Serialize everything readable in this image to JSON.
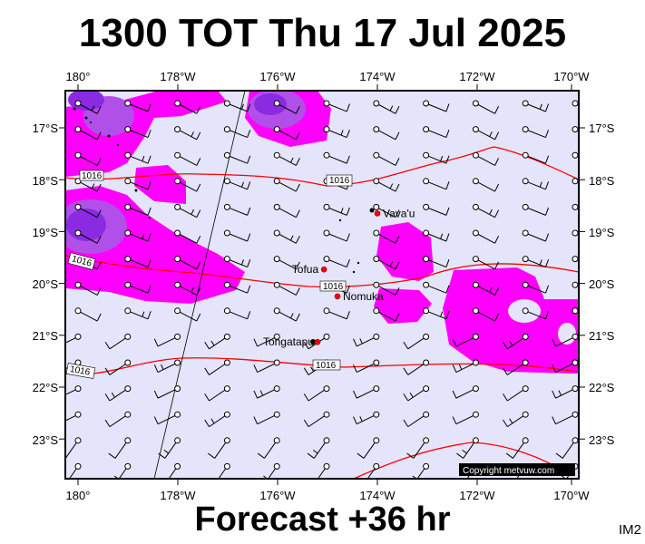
{
  "title": "1300 TOT Thu 17 Jul 2025",
  "footer": "Forecast +36 hr",
  "corner_label": "IM2",
  "copyright": "Copyright metvuw.com",
  "lon_labels": [
    "180°",
    "178°W",
    "176°W",
    "174°W",
    "172°W",
    "170°W"
  ],
  "lat_labels": [
    "17°S",
    "18°S",
    "19°S",
    "20°S",
    "21°S",
    "22°S",
    "23°S"
  ],
  "places": [
    {
      "name": "Vava'u",
      "lon": -174.0,
      "lat": -18.65
    },
    {
      "name": "Tofua",
      "lon": -175.07,
      "lat": -19.73
    },
    {
      "name": "Nomuka",
      "lon": -174.8,
      "lat": -20.25
    },
    {
      "name": "Tongatapu",
      "lon": -175.2,
      "lat": -21.13
    }
  ],
  "isobar_labels": [
    "1016",
    "1016",
    "1016",
    "1016",
    "1016",
    "1016"
  ],
  "colors": {
    "background": "#e4e4fa",
    "rain_light": "#ff00ff",
    "rain_heavy": "#8a2be2",
    "isobar": "#ff0000",
    "frame": "#000000"
  }
}
